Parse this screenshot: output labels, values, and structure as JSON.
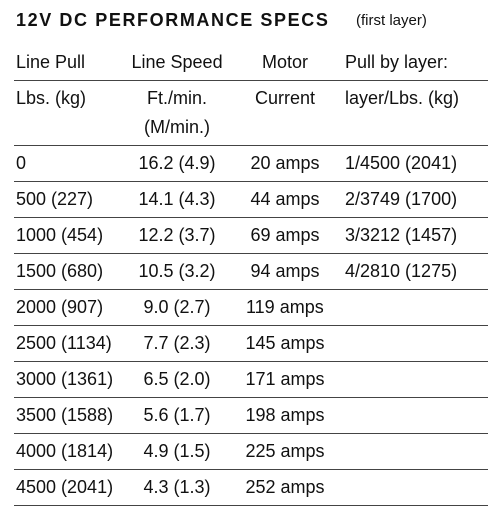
{
  "title": "12V DC PERFORMANCE SPECS",
  "subtitle": "(first layer)",
  "table": {
    "header": [
      [
        [
          "Line Pull"
        ],
        [
          "Line Speed"
        ],
        [
          "Motor"
        ],
        [
          "Pull by layer:"
        ]
      ],
      [
        [
          "Lbs. (kg)"
        ],
        [
          "Ft./min.",
          "(M/min.)"
        ],
        [
          "Current"
        ],
        [
          "layer/Lbs. (kg)"
        ]
      ]
    ],
    "rows": [
      [
        "0",
        "16.2 (4.9)",
        "20 amps",
        "1/4500 (2041)"
      ],
      [
        "500 (227)",
        "14.1 (4.3)",
        "44 amps",
        "2/3749 (1700)"
      ],
      [
        "1000 (454)",
        "12.2 (3.7)",
        "69 amps",
        "3/3212 (1457)"
      ],
      [
        "1500 (680)",
        "10.5 (3.2)",
        "94 amps",
        "4/2810 (1275)"
      ],
      [
        "2000 (907)",
        "9.0 (2.7)",
        "119 amps"
      ],
      [
        "2500 (1134)",
        "7.7 (2.3)",
        "145 amps"
      ],
      [
        "3000 (1361)",
        "6.5 (2.0)",
        "171 amps"
      ],
      [
        "3500 (1588)",
        "5.6 (1.7)",
        "198 amps"
      ],
      [
        "4000 (1814)",
        "4.9 (1.5)",
        "225 amps"
      ],
      [
        "4500 (2041)",
        "4.3 (1.3)",
        "252 amps"
      ]
    ]
  }
}
